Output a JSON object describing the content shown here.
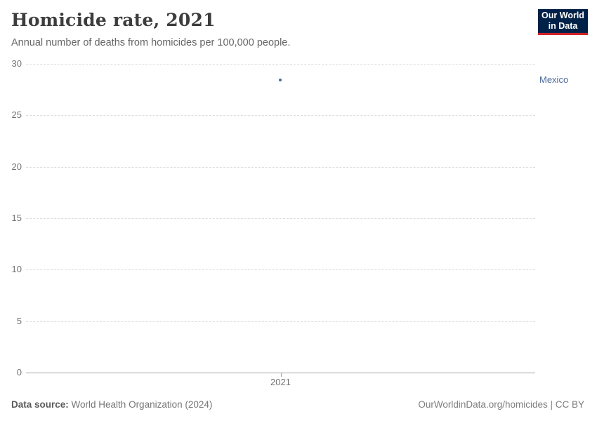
{
  "header": {
    "title": "Homicide rate, 2021",
    "subtitle": "Annual number of deaths from homicides per 100,000 people."
  },
  "logo": {
    "line1": "Our World",
    "line2": "in Data",
    "bg_color": "#002147",
    "accent_color": "#d0232a"
  },
  "chart_data": {
    "type": "scatter",
    "title": "Homicide rate, 2021",
    "xlabel": "",
    "ylabel": "",
    "x": [
      2021
    ],
    "xticks": [
      "2021"
    ],
    "series": [
      {
        "name": "Mexico",
        "values": [
          28.4
        ],
        "color": "#4c6a9c"
      }
    ],
    "ylim": [
      0,
      30
    ],
    "yticks": [
      0,
      5,
      10,
      15,
      20,
      25,
      30
    ],
    "grid": "horizontal-dashed",
    "legend_position": "right-of-point"
  },
  "footer": {
    "source_label": "Data source:",
    "source_value": " World Health Organization (2024)",
    "attribution": "OurWorldinData.org/homicides | CC BY"
  }
}
